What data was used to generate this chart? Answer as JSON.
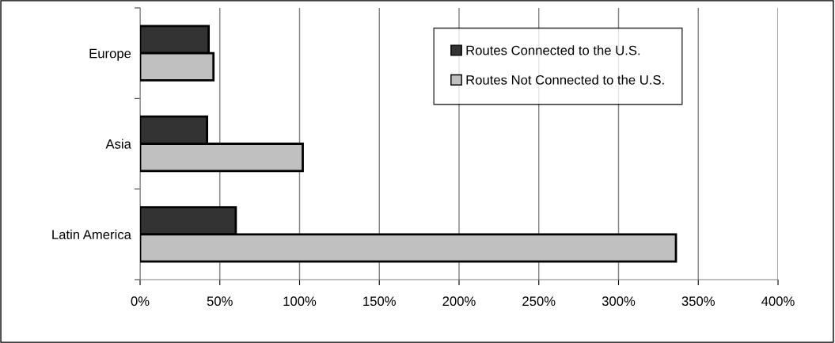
{
  "chart_data": {
    "type": "bar",
    "orientation": "horizontal",
    "categories": [
      "Europe",
      "Asia",
      "Latin America"
    ],
    "series": [
      {
        "name": "Routes Connected to the U.S.",
        "color": "#333333",
        "values": [
          43,
          42,
          60
        ]
      },
      {
        "name": "Routes Not Connected to the U.S.",
        "color": "#c0c0c0",
        "values": [
          46,
          102,
          336
        ]
      }
    ],
    "xlim": [
      0,
      400
    ],
    "xticks": [
      {
        "value": 0,
        "label": "0%"
      },
      {
        "value": 50,
        "label": "50%"
      },
      {
        "value": 100,
        "label": "100%"
      },
      {
        "value": 150,
        "label": "150%"
      },
      {
        "value": 200,
        "label": "200%"
      },
      {
        "value": 250,
        "label": "250%"
      },
      {
        "value": 300,
        "label": "300%"
      },
      {
        "value": 350,
        "label": "350%"
      },
      {
        "value": 400,
        "label": "400%"
      }
    ],
    "grid": "x",
    "legend": "top right"
  }
}
